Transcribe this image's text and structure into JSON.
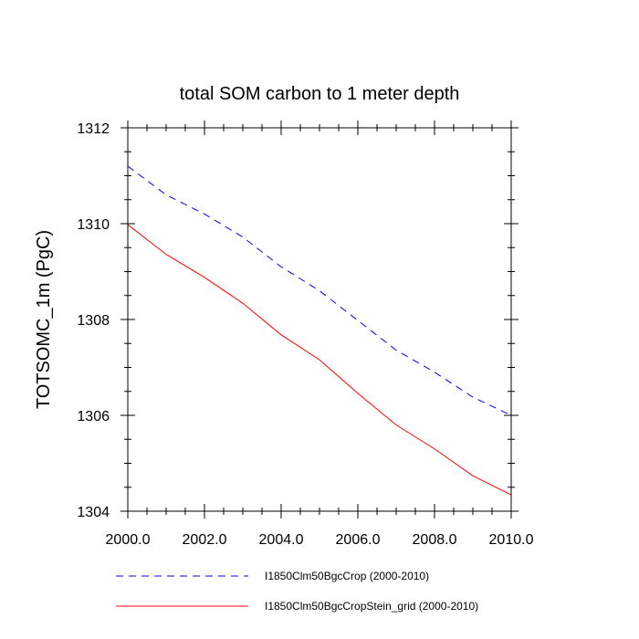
{
  "chart_data": {
    "type": "line",
    "title": "total SOM carbon to 1 meter depth",
    "ylabel": "TOTSOMC_1m  (PgC)",
    "xlabel": "",
    "xlim": [
      2000,
      2010
    ],
    "ylim": [
      1304,
      1312
    ],
    "x_ticks": [
      "2000.0",
      "2002.0",
      "2004.0",
      "2006.0",
      "2008.0",
      "2010.0"
    ],
    "y_ticks": [
      "1304",
      "1306",
      "1308",
      "1310",
      "1312"
    ],
    "x": [
      2000,
      2001,
      2002,
      2003,
      2004,
      2005,
      2006,
      2007,
      2008,
      2009,
      2010
    ],
    "series": [
      {
        "name": "I1850Clm50BgcCrop (2000-2010)",
        "color": "#0000ff",
        "dash": "dashed",
        "values": [
          1311.2,
          1310.6,
          1310.2,
          1309.72,
          1309.1,
          1308.6,
          1307.98,
          1307.36,
          1306.9,
          1306.38,
          1306.0
        ]
      },
      {
        "name": "I1850Clm50BgcCropStein_grid (2000-2010)",
        "color": "#ff0000",
        "dash": "solid",
        "values": [
          1309.98,
          1309.36,
          1308.88,
          1308.34,
          1307.68,
          1307.16,
          1306.46,
          1305.8,
          1305.3,
          1304.74,
          1304.34
        ]
      }
    ],
    "legend_position": "bottom",
    "grid": false
  }
}
